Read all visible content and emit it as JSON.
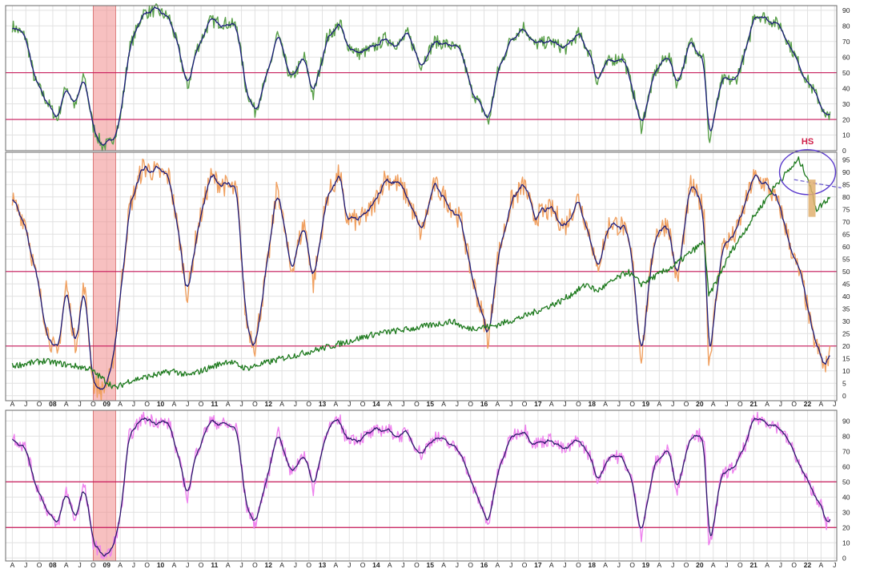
{
  "colors": {
    "background": "#ffffff",
    "panel_border": "#6a6a6a",
    "grid": "#e1e1e1",
    "reference_line": "#c8195a",
    "highlight_band": "#f08c8c",
    "panel1_raw": "#5aa04a",
    "panel1_smooth": "#1a1a7a",
    "panel2_raw": "#f0a060",
    "panel2_smooth": "#1a1a7a",
    "panel2_overlay": "#1e7a1e",
    "panel2_dashed": "#6a5acd",
    "panel3_raw": "#ee82ee",
    "panel3_smooth": "#2a1a6a",
    "annotation": "#d0204a",
    "annotation_ellipse": "#5a3acd",
    "annotation_bar": "#e0b070"
  },
  "x_axis_labels": [
    "A",
    "J",
    "O",
    "08",
    "A",
    "J",
    "O",
    "09",
    "A",
    "J",
    "O",
    "10",
    "A",
    "J",
    "O",
    "11",
    "A",
    "J",
    "O",
    "12",
    "A",
    "J",
    "O",
    "13",
    "A",
    "J",
    "O",
    "14",
    "A",
    "J",
    "O",
    "15",
    "A",
    "J",
    "O",
    "16",
    "A",
    "J",
    "O",
    "17",
    "A",
    "J",
    "O",
    "18",
    "A",
    "J",
    "O",
    "19",
    "A",
    "J",
    "O",
    "20",
    "A",
    "J",
    "O",
    "21",
    "A",
    "J",
    "O",
    "22",
    "A",
    "J"
  ],
  "annotation": {
    "label": "HS"
  },
  "chart_data": [
    {
      "type": "line",
      "panel": "top",
      "x_range": [
        "2007-04",
        "2022-06"
      ],
      "ylim": [
        0,
        93
      ],
      "y_ticks": [
        0,
        10,
        20,
        30,
        40,
        50,
        60,
        70,
        80,
        90
      ],
      "reference_lines": [
        20,
        50
      ],
      "grid": true,
      "highlight_period": [
        "2008-10",
        "2009-03"
      ],
      "series": [
        {
          "style": "raw + smoothed",
          "x": [
            "2007-04",
            "2007-07",
            "2007-09",
            "2007-12",
            "2008-02",
            "2008-04",
            "2008-06",
            "2008-08",
            "2008-10",
            "2008-12",
            "2009-02",
            "2009-04",
            "2009-06",
            "2009-09",
            "2009-12",
            "2010-03",
            "2010-05",
            "2010-07",
            "2010-09",
            "2010-12",
            "2011-03",
            "2011-06",
            "2011-08",
            "2011-10",
            "2012-01",
            "2012-03",
            "2012-06",
            "2012-09",
            "2012-11",
            "2013-02",
            "2013-05",
            "2013-06",
            "2013-09",
            "2013-12",
            "2014-03",
            "2014-06",
            "2014-08",
            "2014-11",
            "2015-02",
            "2015-05",
            "2015-08",
            "2015-10",
            "2016-01",
            "2016-02",
            "2016-04",
            "2016-07",
            "2016-10",
            "2016-12",
            "2017-04",
            "2017-07",
            "2017-10",
            "2018-01",
            "2018-02",
            "2018-05",
            "2018-08",
            "2018-10",
            "2018-12",
            "2019-03",
            "2019-06",
            "2019-08",
            "2019-11",
            "2020-02",
            "2020-03",
            "2020-06",
            "2020-09",
            "2020-12",
            "2021-01",
            "2021-04",
            "2021-07",
            "2021-10",
            "2021-12",
            "2022-02",
            "2022-04",
            "2022-05",
            "2022-06"
          ],
          "values": [
            80,
            73,
            45,
            30,
            20,
            42,
            28,
            48,
            15,
            3,
            5,
            20,
            65,
            88,
            90,
            85,
            65,
            40,
            65,
            83,
            82,
            80,
            40,
            25,
            50,
            75,
            45,
            60,
            35,
            72,
            82,
            70,
            62,
            65,
            72,
            68,
            75,
            55,
            70,
            68,
            63,
            40,
            25,
            18,
            50,
            72,
            80,
            68,
            70,
            65,
            75,
            60,
            45,
            58,
            60,
            40,
            15,
            50,
            62,
            42,
            70,
            60,
            5,
            45,
            45,
            70,
            88,
            85,
            80,
            62,
            50,
            40,
            30,
            20,
            25
          ]
        }
      ]
    },
    {
      "type": "line",
      "panel": "middle",
      "x_range": [
        "2007-04",
        "2022-06"
      ],
      "ylim": [
        -2,
        98
      ],
      "y_ticks": [
        0,
        5,
        10,
        15,
        20,
        25,
        30,
        35,
        40,
        45,
        50,
        55,
        60,
        65,
        70,
        75,
        80,
        85,
        90,
        95
      ],
      "reference_lines": [
        20,
        50
      ],
      "grid": true,
      "highlight_period": [
        "2008-10",
        "2009-03"
      ],
      "series": [
        {
          "style": "raw + smoothed",
          "x": [
            "2007-04",
            "2007-07",
            "2007-09",
            "2007-12",
            "2008-02",
            "2008-04",
            "2008-06",
            "2008-08",
            "2008-10",
            "2008-12",
            "2009-02",
            "2009-04",
            "2009-06",
            "2009-09",
            "2009-12",
            "2010-03",
            "2010-05",
            "2010-07",
            "2010-09",
            "2010-12",
            "2011-03",
            "2011-06",
            "2011-08",
            "2011-10",
            "2012-01",
            "2012-03",
            "2012-06",
            "2012-09",
            "2012-11",
            "2013-02",
            "2013-05",
            "2013-06",
            "2013-09",
            "2013-12",
            "2014-03",
            "2014-06",
            "2014-08",
            "2014-11",
            "2015-02",
            "2015-05",
            "2015-08",
            "2015-10",
            "2016-01",
            "2016-02",
            "2016-04",
            "2016-07",
            "2016-10",
            "2016-12",
            "2017-04",
            "2017-07",
            "2017-10",
            "2018-01",
            "2018-02",
            "2018-05",
            "2018-08",
            "2018-10",
            "2018-12",
            "2019-03",
            "2019-06",
            "2019-08",
            "2019-11",
            "2020-02",
            "2020-03",
            "2020-06",
            "2020-09",
            "2020-12",
            "2021-01",
            "2021-04",
            "2021-07",
            "2021-10",
            "2021-12",
            "2022-02",
            "2022-04",
            "2022-05",
            "2022-06"
          ],
          "values": [
            78,
            70,
            50,
            25,
            15,
            45,
            20,
            45,
            5,
            2,
            8,
            40,
            75,
            92,
            90,
            88,
            65,
            40,
            65,
            88,
            85,
            82,
            30,
            20,
            55,
            85,
            50,
            70,
            45,
            80,
            90,
            72,
            70,
            75,
            88,
            85,
            80,
            65,
            85,
            78,
            70,
            50,
            30,
            22,
            55,
            78,
            85,
            72,
            75,
            68,
            80,
            62,
            50,
            70,
            68,
            55,
            15,
            65,
            70,
            45,
            85,
            75,
            12,
            60,
            65,
            82,
            88,
            85,
            75,
            55,
            45,
            25,
            15,
            10,
            20
          ]
        },
        {
          "style": "overlay",
          "x": [
            "2007-04",
            "2007-11",
            "2008-09",
            "2009-03",
            "2009-06",
            "2010-04",
            "2010-07",
            "2011-04",
            "2011-08",
            "2012-04",
            "2013-03",
            "2014-01",
            "2014-09",
            "2015-06",
            "2015-09",
            "2016-03",
            "2016-10",
            "2017-06",
            "2017-12",
            "2018-02",
            "2018-09",
            "2018-12",
            "2019-07",
            "2020-02",
            "2020-03",
            "2020-08",
            "2021-01",
            "2021-06",
            "2021-11",
            "2022-01",
            "2022-03",
            "2022-06"
          ],
          "values": [
            12,
            14,
            11,
            3,
            6,
            10,
            8,
            14,
            11,
            15,
            20,
            25,
            27,
            30,
            27,
            28,
            32,
            38,
            45,
            42,
            50,
            45,
            52,
            62,
            40,
            58,
            72,
            85,
            95,
            88,
            75,
            80
          ]
        },
        {
          "style": "dashed-trendline",
          "x": [
            "2021-10",
            "2022-06"
          ],
          "values": [
            87,
            84
          ]
        }
      ]
    },
    {
      "type": "line",
      "panel": "bottom",
      "x_range": [
        "2007-04",
        "2022-06"
      ],
      "ylim": [
        -2,
        97
      ],
      "y_ticks": [
        0,
        10,
        20,
        30,
        40,
        50,
        60,
        70,
        80,
        90
      ],
      "reference_lines": [
        20,
        50
      ],
      "grid": true,
      "highlight_period": [
        "2008-10",
        "2009-03"
      ],
      "series": [
        {
          "style": "raw + smoothed",
          "x": [
            "2007-04",
            "2007-07",
            "2007-09",
            "2007-12",
            "2008-02",
            "2008-04",
            "2008-06",
            "2008-08",
            "2008-10",
            "2008-12",
            "2009-02",
            "2009-04",
            "2009-06",
            "2009-09",
            "2009-12",
            "2010-03",
            "2010-05",
            "2010-07",
            "2010-09",
            "2010-12",
            "2011-03",
            "2011-06",
            "2011-08",
            "2011-10",
            "2012-01",
            "2012-03",
            "2012-06",
            "2012-09",
            "2012-11",
            "2013-02",
            "2013-05",
            "2013-06",
            "2013-09",
            "2013-12",
            "2014-03",
            "2014-06",
            "2014-08",
            "2014-11",
            "2015-02",
            "2015-05",
            "2015-08",
            "2015-10",
            "2016-01",
            "2016-02",
            "2016-04",
            "2016-07",
            "2016-10",
            "2016-12",
            "2017-04",
            "2017-07",
            "2017-10",
            "2018-01",
            "2018-02",
            "2018-05",
            "2018-08",
            "2018-10",
            "2018-12",
            "2019-03",
            "2019-06",
            "2019-08",
            "2019-11",
            "2020-02",
            "2020-03",
            "2020-06",
            "2020-09",
            "2020-12",
            "2021-01",
            "2021-04",
            "2021-07",
            "2021-10",
            "2021-12",
            "2022-02",
            "2022-04",
            "2022-05",
            "2022-06"
          ],
          "values": [
            80,
            72,
            50,
            30,
            20,
            45,
            25,
            48,
            10,
            2,
            3,
            25,
            80,
            92,
            90,
            88,
            65,
            40,
            70,
            90,
            88,
            85,
            35,
            22,
            55,
            85,
            55,
            70,
            45,
            85,
            90,
            80,
            78,
            82,
            85,
            80,
            82,
            68,
            80,
            75,
            70,
            50,
            30,
            22,
            55,
            80,
            85,
            75,
            78,
            70,
            78,
            65,
            50,
            68,
            65,
            50,
            15,
            62,
            72,
            45,
            82,
            80,
            5,
            55,
            60,
            80,
            92,
            90,
            85,
            70,
            55,
            45,
            35,
            22,
            25
          ]
        }
      ]
    }
  ]
}
